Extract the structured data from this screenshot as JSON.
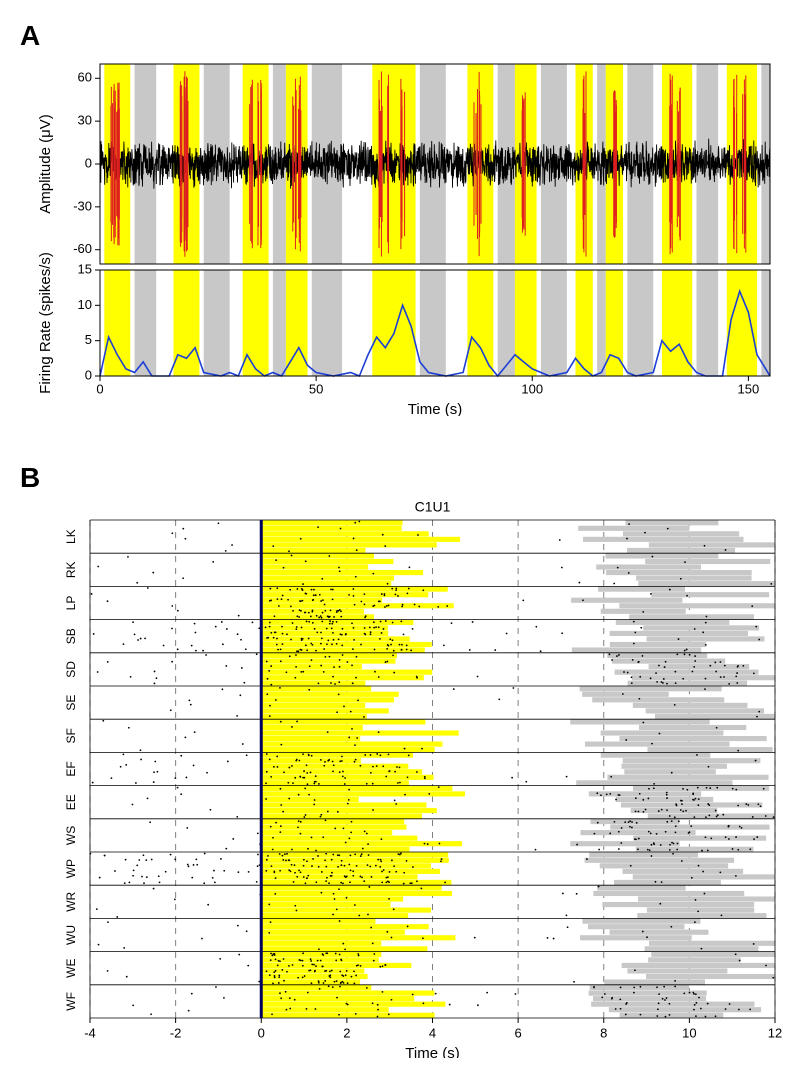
{
  "panelA": {
    "label": "A",
    "colors": {
      "yellow": "#ffff00",
      "gray": "#c8c8c8",
      "black": "#000000",
      "red": "#df1f1f",
      "blue": "#1c3fd6",
      "axis": "#000000",
      "bg": "#ffffff"
    },
    "trace": {
      "xlabel": "Time (s)",
      "ylabel_top": "Amplitude (μV)",
      "ylabel_bot": "Firing Rate (spikes/s)",
      "xlim": [
        0,
        155
      ],
      "ylim_top": [
        -70,
        70
      ],
      "ytick_top": [
        -60,
        -30,
        0,
        30,
        60
      ],
      "ylim_bot": [
        0,
        15
      ],
      "ytick_bot": [
        0,
        5,
        10,
        15
      ],
      "xtick": [
        0,
        50,
        100,
        150
      ],
      "yellow_bands": [
        [
          1,
          7
        ],
        [
          17,
          23
        ],
        [
          33,
          39
        ],
        [
          43,
          48
        ],
        [
          63,
          73
        ],
        [
          85,
          91
        ],
        [
          96,
          101
        ],
        [
          110,
          114
        ],
        [
          117,
          121
        ],
        [
          130,
          137
        ],
        [
          145,
          152
        ]
      ],
      "gray_bands": [
        [
          8,
          13
        ],
        [
          24,
          30
        ],
        [
          40,
          43
        ],
        [
          49,
          56
        ],
        [
          74,
          80
        ],
        [
          92,
          96
        ],
        [
          102,
          108
        ],
        [
          115,
          117
        ],
        [
          122,
          128
        ],
        [
          138,
          143
        ],
        [
          153,
          155
        ]
      ],
      "red_burst_centers": [
        3,
        4,
        19,
        20,
        35,
        37,
        45,
        46,
        65,
        67,
        70,
        87,
        88,
        98,
        112,
        119,
        132,
        134,
        147,
        149
      ],
      "noise_amp": 18,
      "firing_curve": [
        [
          0,
          0
        ],
        [
          2,
          5.5
        ],
        [
          4,
          3
        ],
        [
          6,
          1
        ],
        [
          8,
          0.5
        ],
        [
          10,
          2
        ],
        [
          12,
          0
        ],
        [
          16,
          0
        ],
        [
          18,
          3
        ],
        [
          20,
          2.5
        ],
        [
          22,
          4
        ],
        [
          24,
          0.5
        ],
        [
          28,
          0
        ],
        [
          30,
          0.5
        ],
        [
          32,
          0
        ],
        [
          34,
          3
        ],
        [
          36,
          1
        ],
        [
          38,
          0
        ],
        [
          40,
          0.5
        ],
        [
          42,
          0
        ],
        [
          44,
          2
        ],
        [
          46,
          4
        ],
        [
          48,
          1.5
        ],
        [
          50,
          0.5
        ],
        [
          54,
          0
        ],
        [
          58,
          0.5
        ],
        [
          60,
          0
        ],
        [
          62,
          3
        ],
        [
          64,
          5.5
        ],
        [
          66,
          4
        ],
        [
          68,
          6
        ],
        [
          70,
          10
        ],
        [
          72,
          7
        ],
        [
          74,
          2
        ],
        [
          76,
          0.5
        ],
        [
          80,
          0
        ],
        [
          84,
          0.5
        ],
        [
          86,
          5.5
        ],
        [
          88,
          4
        ],
        [
          90,
          1.5
        ],
        [
          92,
          0
        ],
        [
          96,
          3
        ],
        [
          98,
          2
        ],
        [
          100,
          1
        ],
        [
          104,
          0
        ],
        [
          108,
          0.5
        ],
        [
          110,
          2.5
        ],
        [
          112,
          1
        ],
        [
          114,
          0
        ],
        [
          116,
          0.5
        ],
        [
          118,
          3
        ],
        [
          120,
          2.5
        ],
        [
          122,
          0.5
        ],
        [
          124,
          0
        ],
        [
          128,
          0.5
        ],
        [
          130,
          5
        ],
        [
          132,
          3.5
        ],
        [
          134,
          4.5
        ],
        [
          136,
          2
        ],
        [
          138,
          0.5
        ],
        [
          140,
          0
        ],
        [
          144,
          0
        ],
        [
          146,
          8
        ],
        [
          148,
          12
        ],
        [
          150,
          9
        ],
        [
          152,
          3
        ],
        [
          154,
          1
        ],
        [
          155,
          0
        ]
      ]
    }
  },
  "panelB": {
    "label": "B",
    "title": "C1U1",
    "xlabel": "Time (s)",
    "xlim": [
      -4,
      12
    ],
    "xtick": [
      -4,
      -2,
      0,
      2,
      4,
      6,
      8,
      10,
      12
    ],
    "colors": {
      "yellow": "#ffff00",
      "gray": "#c8c8c8",
      "black": "#000000",
      "grid": "#808080",
      "alignline": "#000060"
    },
    "conditions": [
      "WF",
      "WE",
      "WU",
      "WR",
      "WP",
      "WS",
      "EE",
      "EF",
      "SF",
      "SE",
      "SD",
      "SB",
      "LP",
      "RK",
      "LK"
    ],
    "trials_per_cond": 6,
    "yellow_len_default": 3.2,
    "gray_start_default": 8.0,
    "gray_len_default": 2.8,
    "spike_density": {
      "WF": 0.25,
      "WE": 0.9,
      "WU": 0.1,
      "WR": 0.15,
      "WP": 1.0,
      "WS": 0.3,
      "EE": 0.2,
      "EF": 0.7,
      "SF": 0.1,
      "SE": 0.1,
      "SD": 0.4,
      "SB": 0.95,
      "LP": 0.9,
      "RK": 0.12,
      "LK": 0.12
    },
    "gray_spike_density": {
      "WF": 0.5,
      "WE": 0.05,
      "WU": 0.05,
      "WR": 0.05,
      "WP": 0.12,
      "WS": 0.6,
      "EE": 0.7,
      "EF": 0.05,
      "SF": 0.05,
      "SE": 0.05,
      "SD": 0.5,
      "SB": 0.1,
      "LP": 0.05,
      "RK": 0.05,
      "LK": 0.05
    },
    "pre_spike_density": {
      "WF": 0.05,
      "WE": 0.05,
      "WU": 0.05,
      "WR": 0.05,
      "WP": 0.5,
      "WS": 0.05,
      "EE": 0.05,
      "EF": 0.2,
      "SF": 0.05,
      "SE": 0.05,
      "SD": 0.15,
      "SB": 0.3,
      "LP": 0.1,
      "RK": 0.1,
      "LK": 0.05
    }
  }
}
